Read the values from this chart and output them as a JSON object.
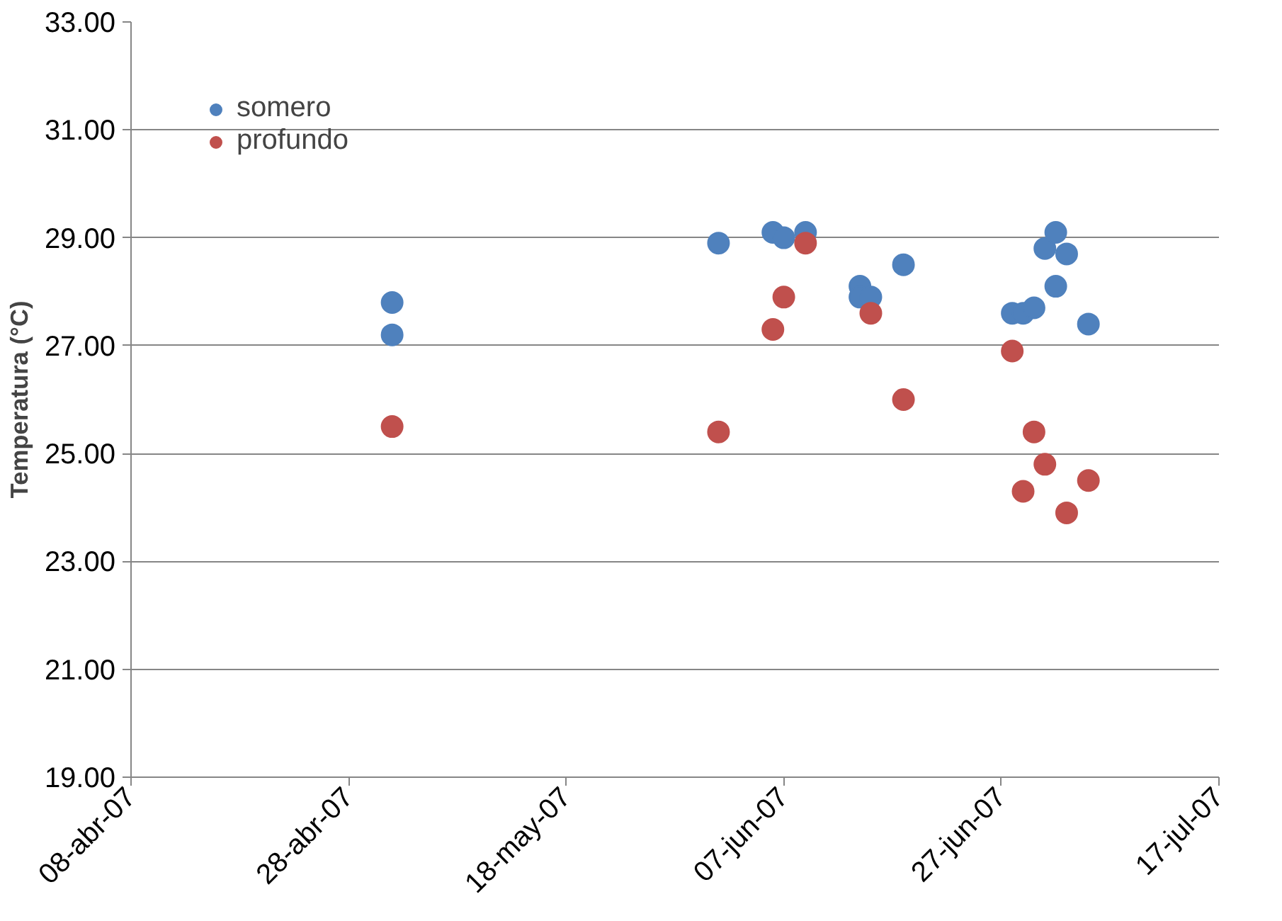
{
  "chart_data": {
    "type": "scatter",
    "ylabel": "Temperatura (°C)",
    "xlim": [
      "2007-04-08",
      "2007-07-17"
    ],
    "xticks": [
      {
        "value": "2007-04-08",
        "label": "08-abr-07"
      },
      {
        "value": "2007-04-28",
        "label": "28-abr-07"
      },
      {
        "value": "2007-05-18",
        "label": "18-may-07"
      },
      {
        "value": "2007-06-07",
        "label": "07-jun-07"
      },
      {
        "value": "2007-06-27",
        "label": "27-jun-07"
      },
      {
        "value": "2007-07-17",
        "label": "17-jul-07"
      }
    ],
    "ylim": [
      19,
      33
    ],
    "yticks": [
      {
        "value": 19,
        "label": "19.00"
      },
      {
        "value": 21,
        "label": "21.00"
      },
      {
        "value": 23,
        "label": "23.00"
      },
      {
        "value": 25,
        "label": "25.00"
      },
      {
        "value": 27,
        "label": "27.00"
      },
      {
        "value": 29,
        "label": "29.00"
      },
      {
        "value": 31,
        "label": "31.00"
      },
      {
        "value": 33,
        "label": "33.00"
      }
    ],
    "grid": "y",
    "legend": "top left",
    "marker": "circle",
    "series": [
      {
        "name": "somero",
        "color": "#4f81bd",
        "x": [
          "2007-05-02",
          "2007-05-02",
          "2007-06-01",
          "2007-06-06",
          "2007-06-07",
          "2007-06-09",
          "2007-06-14",
          "2007-06-14",
          "2007-06-15",
          "2007-06-18",
          "2007-06-28",
          "2007-06-29",
          "2007-06-30",
          "2007-07-01",
          "2007-07-02",
          "2007-07-02",
          "2007-07-03",
          "2007-07-05"
        ],
        "values": [
          27.8,
          27.2,
          28.9,
          29.1,
          29.0,
          29.1,
          28.1,
          27.9,
          27.9,
          28.5,
          27.6,
          27.6,
          27.7,
          28.8,
          29.1,
          28.1,
          28.7,
          27.4
        ]
      },
      {
        "name": "profundo",
        "color": "#c0504d",
        "x": [
          "2007-05-02",
          "2007-06-01",
          "2007-06-06",
          "2007-06-07",
          "2007-06-09",
          "2007-06-15",
          "2007-06-18",
          "2007-06-28",
          "2007-06-29",
          "2007-06-30",
          "2007-07-01",
          "2007-07-03",
          "2007-07-05"
        ],
        "values": [
          25.5,
          25.4,
          27.3,
          27.9,
          28.9,
          27.6,
          26.0,
          26.9,
          24.3,
          25.4,
          24.8,
          23.9,
          24.5
        ]
      }
    ]
  }
}
